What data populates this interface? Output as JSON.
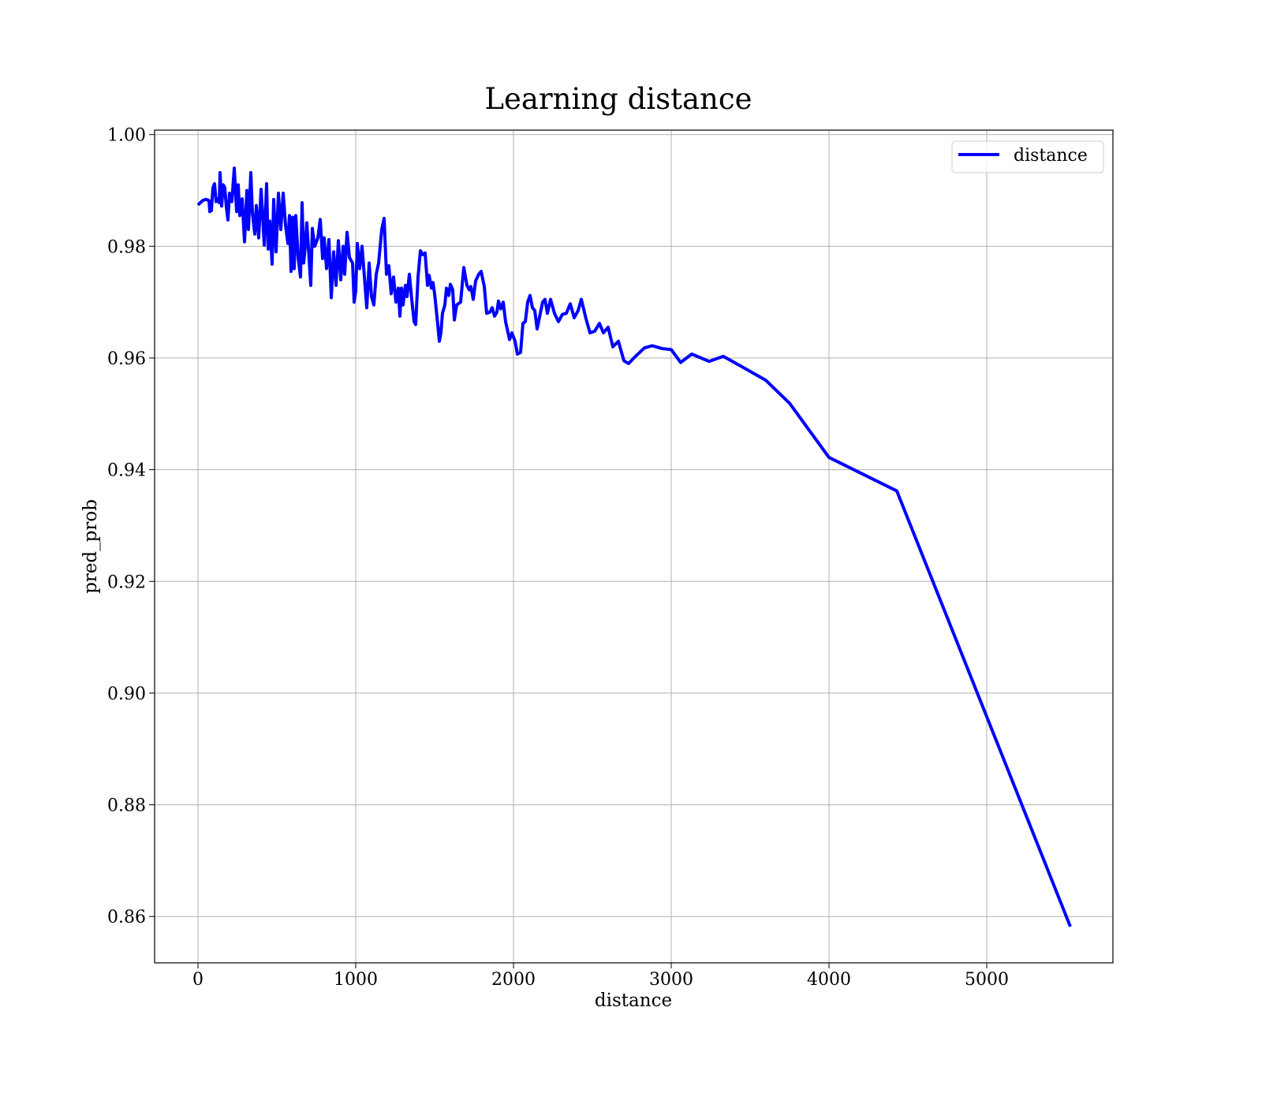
{
  "chart_data": {
    "type": "line",
    "title": "Learning distance",
    "xlabel": "distance",
    "ylabel": "pred_prob",
    "x": [
      0,
      30,
      50,
      70,
      75,
      85,
      95,
      105,
      115,
      125,
      135,
      140,
      150,
      160,
      170,
      180,
      190,
      200,
      215,
      230,
      245,
      255,
      265,
      280,
      295,
      310,
      320,
      335,
      345,
      360,
      370,
      385,
      400,
      410,
      420,
      435,
      445,
      455,
      470,
      480,
      495,
      510,
      525,
      540,
      555,
      570,
      580,
      590,
      600,
      610,
      620,
      635,
      650,
      660,
      670,
      680,
      690,
      705,
      715,
      725,
      740,
      760,
      775,
      790,
      800,
      815,
      830,
      845,
      860,
      875,
      890,
      905,
      920,
      930,
      945,
      960,
      980,
      990,
      1000,
      1010,
      1025,
      1040,
      1055,
      1070,
      1085,
      1100,
      1115,
      1130,
      1145,
      1165,
      1180,
      1195,
      1210,
      1225,
      1240,
      1255,
      1270,
      1280,
      1290,
      1300,
      1315,
      1325,
      1340,
      1355,
      1370,
      1380,
      1395,
      1410,
      1425,
      1440,
      1455,
      1465,
      1480,
      1490,
      1500,
      1520,
      1530,
      1540,
      1550,
      1565,
      1575,
      1590,
      1600,
      1615,
      1625,
      1640,
      1665,
      1685,
      1705,
      1720,
      1730,
      1745,
      1760,
      1780,
      1795,
      1815,
      1830,
      1850,
      1865,
      1880,
      1895,
      1905,
      1920,
      1935,
      1950,
      1975,
      1990,
      2010,
      2025,
      2045,
      2060,
      2075,
      2090,
      2105,
      2120,
      2135,
      2150,
      2170,
      2185,
      2200,
      2215,
      2235,
      2260,
      2285,
      2310,
      2335,
      2360,
      2385,
      2410,
      2430,
      2460,
      2485,
      2515,
      2545,
      2570,
      2600,
      2630,
      2665,
      2700,
      2730,
      2770,
      2830,
      2880,
      2940,
      3000,
      3060,
      3130,
      3240,
      3330,
      3450,
      3600,
      3750,
      4000,
      4430,
      5530
    ],
    "series": [
      {
        "name": "distance",
        "color": "#0000ff",
        "values": [
          0.9874,
          0.9882,
          0.9884,
          0.9882,
          0.9862,
          0.9864,
          0.9905,
          0.9912,
          0.988,
          0.9885,
          0.9878,
          0.9932,
          0.9872,
          0.991,
          0.9905,
          0.987,
          0.9847,
          0.9895,
          0.988,
          0.994,
          0.9862,
          0.991,
          0.9855,
          0.9885,
          0.9808,
          0.99,
          0.983,
          0.9932,
          0.986,
          0.9822,
          0.9873,
          0.9815,
          0.9902,
          0.9855,
          0.9802,
          0.9912,
          0.9795,
          0.9845,
          0.9768,
          0.9884,
          0.979,
          0.9895,
          0.983,
          0.9895,
          0.9838,
          0.9805,
          0.9855,
          0.9755,
          0.9852,
          0.976,
          0.9855,
          0.978,
          0.9745,
          0.9878,
          0.977,
          0.98,
          0.9842,
          0.9775,
          0.973,
          0.9832,
          0.98,
          0.9815,
          0.9848,
          0.9778,
          0.9815,
          0.976,
          0.9812,
          0.9708,
          0.979,
          0.973,
          0.981,
          0.974,
          0.98,
          0.975,
          0.9825,
          0.978,
          0.977,
          0.97,
          0.972,
          0.9805,
          0.976,
          0.98,
          0.9745,
          0.969,
          0.977,
          0.971,
          0.9695,
          0.975,
          0.977,
          0.983,
          0.985,
          0.975,
          0.9765,
          0.9715,
          0.9745,
          0.97,
          0.9725,
          0.9675,
          0.9725,
          0.9695,
          0.973,
          0.971,
          0.975,
          0.9705,
          0.9665,
          0.966,
          0.9745,
          0.9792,
          0.9785,
          0.9788,
          0.973,
          0.9748,
          0.9725,
          0.9735,
          0.9715,
          0.966,
          0.963,
          0.9645,
          0.968,
          0.9695,
          0.9725,
          0.9712,
          0.9732,
          0.9722,
          0.9668,
          0.9695,
          0.97,
          0.9762,
          0.973,
          0.9722,
          0.9728,
          0.9705,
          0.9738,
          0.975,
          0.9755,
          0.9728,
          0.968,
          0.9682,
          0.969,
          0.9675,
          0.9682,
          0.9702,
          0.9688,
          0.97,
          0.9665,
          0.9633,
          0.9645,
          0.963,
          0.9607,
          0.961,
          0.9662,
          0.9665,
          0.97,
          0.9712,
          0.969,
          0.9685,
          0.9652,
          0.968,
          0.97,
          0.9705,
          0.968,
          0.9705,
          0.968,
          0.9665,
          0.9678,
          0.968,
          0.9697,
          0.9672,
          0.9685,
          0.9705,
          0.967,
          0.9645,
          0.9648,
          0.9662,
          0.9645,
          0.9655,
          0.962,
          0.963,
          0.9595,
          0.959,
          0.9602,
          0.9618,
          0.9622,
          0.9617,
          0.9615,
          0.9592,
          0.9607,
          0.9594,
          0.9603,
          0.9584,
          0.956,
          0.9519,
          0.9422,
          0.9362,
          0.8582
        ]
      }
    ],
    "xlim": [
      -275,
      5800
    ],
    "xticks": [
      0,
      1000,
      2000,
      3000,
      4000,
      5000
    ],
    "ylim": [
      0.8517,
      1.0008
    ],
    "yticks": [
      {
        "value": 0.86,
        "label": "0.86"
      },
      0.88,
      {
        "value": 0.9,
        "label": "0.90"
      },
      0.92,
      0.94,
      0.96,
      0.98,
      {
        "value": 1,
        "label": "1.00"
      }
    ],
    "grid": true,
    "legend": "upper right"
  }
}
